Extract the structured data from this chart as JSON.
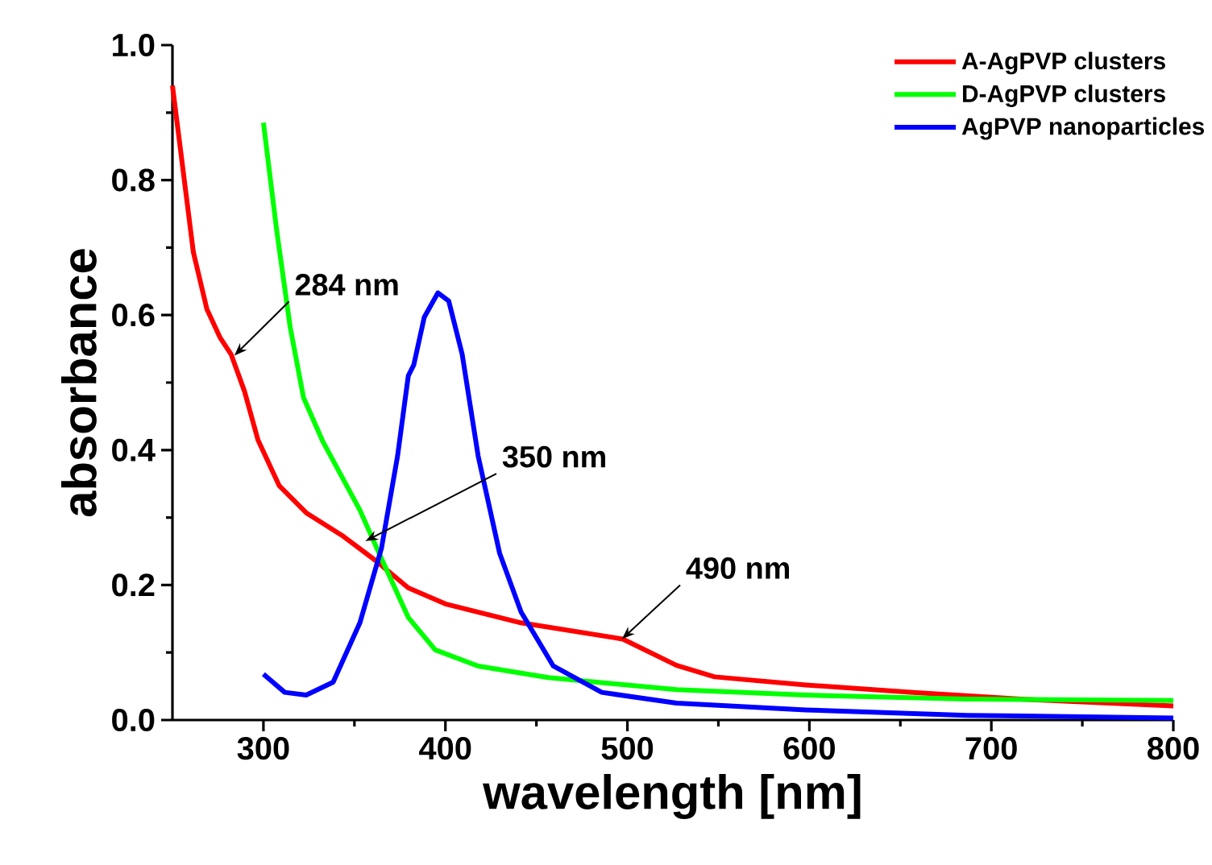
{
  "chart_data": {
    "type": "line",
    "xlabel": "wavelength [nm]",
    "ylabel": "absorbance",
    "xlim": [
      250,
      800
    ],
    "ylim": [
      0,
      1.0
    ],
    "xticks": [
      300,
      400,
      500,
      600,
      700,
      800
    ],
    "yticks": [
      {
        "value": 0,
        "label": "0.0"
      },
      {
        "value": 0.2,
        "label": "0.2"
      },
      {
        "value": 0.4,
        "label": "0.4"
      },
      {
        "value": 0.6,
        "label": "0.6"
      },
      {
        "value": 0.8,
        "label": "0.8"
      },
      {
        "value": 1.0,
        "label": "1.0"
      }
    ],
    "legend": "top right",
    "grid": false,
    "marker": "none",
    "line_style": "solid",
    "annotations": [
      {
        "text": "284 nm",
        "x": 284,
        "y": 0.54
      },
      {
        "text": "350 nm",
        "x": 356,
        "y": 0.265
      },
      {
        "text": "490 nm",
        "x": 497,
        "y": 0.12
      }
    ],
    "series": [
      {
        "name": "A-AgPVP clusters",
        "color": "#ff0000",
        "x": [
          250,
          261.5,
          268.9,
          276.3,
          282.2,
          289.6,
          297,
          308.7,
          323.5,
          344,
          361.8,
          379.5,
          400,
          441.5,
          497.5,
          527,
          547.9,
          598,
          657,
          716,
          800
        ],
        "values": [
          0.94,
          0.693,
          0.609,
          0.566,
          0.542,
          0.487,
          0.415,
          0.347,
          0.307,
          0.272,
          0.236,
          0.196,
          0.172,
          0.144,
          0.12,
          0.081,
          0.064,
          0.052,
          0.041,
          0.031,
          0.021
        ]
      },
      {
        "name": "D-AgPVP clusters",
        "color": "#00ff00",
        "x": [
          300,
          307.3,
          314.7,
          322,
          332.4,
          353,
          364.9,
          379.6,
          394.4,
          418,
          456.4,
          527,
          598,
          686.7,
          800
        ],
        "values": [
          0.885,
          0.725,
          0.582,
          0.478,
          0.414,
          0.311,
          0.239,
          0.152,
          0.104,
          0.08,
          0.063,
          0.045,
          0.037,
          0.031,
          0.029
        ]
      },
      {
        "name": "AgPVP nanoparticles",
        "color": "#0000ff",
        "x": [
          300,
          311.7,
          323.5,
          338.3,
          353,
          364.9,
          373.7,
          379.6,
          382.6,
          388.4,
          395.9,
          401.8,
          409.2,
          418,
          429.8,
          441.6,
          459.3,
          485.9,
          527,
          598,
          686.7,
          800
        ],
        "values": [
          0.068,
          0.041,
          0.037,
          0.056,
          0.144,
          0.255,
          0.391,
          0.51,
          0.526,
          0.597,
          0.633,
          0.621,
          0.542,
          0.391,
          0.247,
          0.16,
          0.08,
          0.041,
          0.025,
          0.015,
          0.007,
          0.003
        ]
      }
    ]
  }
}
